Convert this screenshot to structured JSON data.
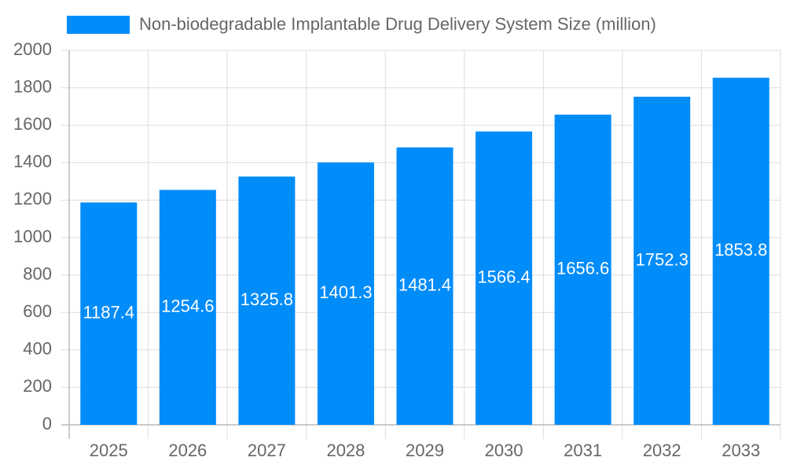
{
  "chart_data": {
    "type": "bar",
    "categories": [
      "2025",
      "2026",
      "2027",
      "2028",
      "2029",
      "2030",
      "2031",
      "2032",
      "2033"
    ],
    "series": [
      {
        "name": "Non-biodegradable Implantable Drug Delivery System Size (million)",
        "color": "#008cf9",
        "values": [
          1187.4,
          1254.6,
          1325.8,
          1401.3,
          1481.4,
          1566.4,
          1656.6,
          1752.3,
          1853.8
        ]
      }
    ],
    "ylim": [
      0,
      2000
    ],
    "yticks": [
      0,
      200,
      400,
      600,
      800,
      1000,
      1200,
      1400,
      1600,
      1800,
      2000
    ],
    "grid": true,
    "legend": "top"
  }
}
